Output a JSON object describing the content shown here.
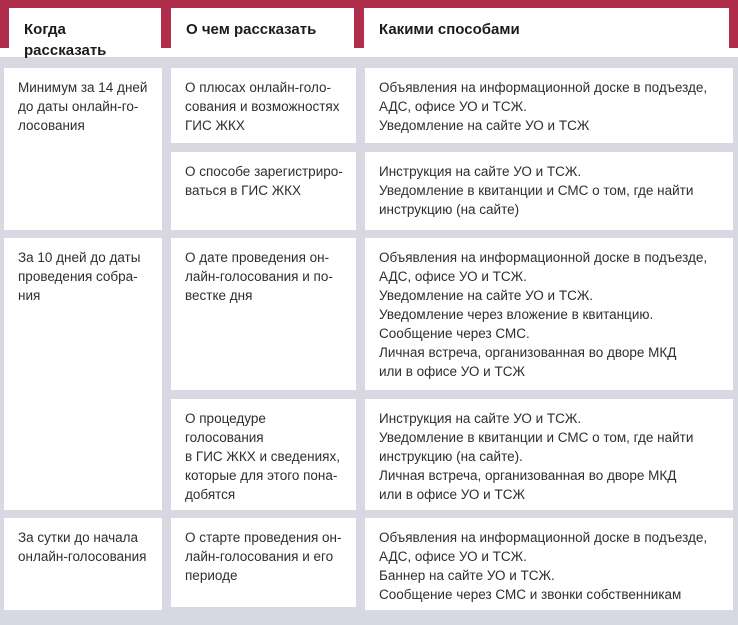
{
  "colors": {
    "accent_red": "#b02e4c",
    "background_lavender": "#d7d8e2",
    "cell_white": "#ffffff"
  },
  "table": {
    "headers": {
      "when": "Когда\nрассказать",
      "what": "О чем рассказать",
      "how": "Какими способами"
    },
    "groups": [
      {
        "when": "Минимум за 14 дней\nдо даты онлайн-го-\nлосования",
        "rows": [
          {
            "what": "О плюсах онлайн-голо-\nсования и возможностях\nГИС ЖКХ",
            "how": "Объявления на информационной доске в подъезде,\nАДС, офисе УО и ТСЖ.\nУведомление на сайте УО и ТСЖ"
          },
          {
            "what": "О способе зарегистриро-\nваться в ГИС ЖКХ",
            "how": "Инструкция на сайте УО и ТСЖ.\nУведомление в квитанции и СМС о том, где найти\nинструкцию (на сайте)"
          }
        ]
      },
      {
        "when": "За 10 дней до даты\nпроведения собра-\nния",
        "rows": [
          {
            "what": "О дате проведения он-\nлайн-голосования и по-\nвестке дня",
            "how": "Объявления на информационной доске в подъезде,\nАДС, офисе УО и ТСЖ.\nУведомление на сайте УО и ТСЖ.\nУведомление через вложение в квитанцию.\nСообщение через СМС.\nЛичная встреча, организованная во дворе МКД\nили в офисе УО и ТСЖ"
          },
          {
            "what": "О процедуре голосования\nв ГИС ЖКХ и сведениях,\nкоторые для этого пона-\nдобятся",
            "how": "Инструкция на сайте УО и ТСЖ.\nУведомление в квитанции и СМС о том, где найти\nинструкцию (на сайте).\nЛичная встреча, организованная во дворе МКД\nили в офисе УО и ТСЖ"
          }
        ]
      },
      {
        "when": "За сутки до начала\nонлайн-голосования",
        "rows": [
          {
            "what": "О старте проведения он-\nлайн-голосования и его\nпериоде",
            "how": "Объявления на информационной доске в подъезде,\nАДС, офисе УО и ТСЖ.\nБаннер на сайте УО и ТСЖ.\nСообщение через СМС и звонки собственникам"
          }
        ]
      }
    ]
  }
}
